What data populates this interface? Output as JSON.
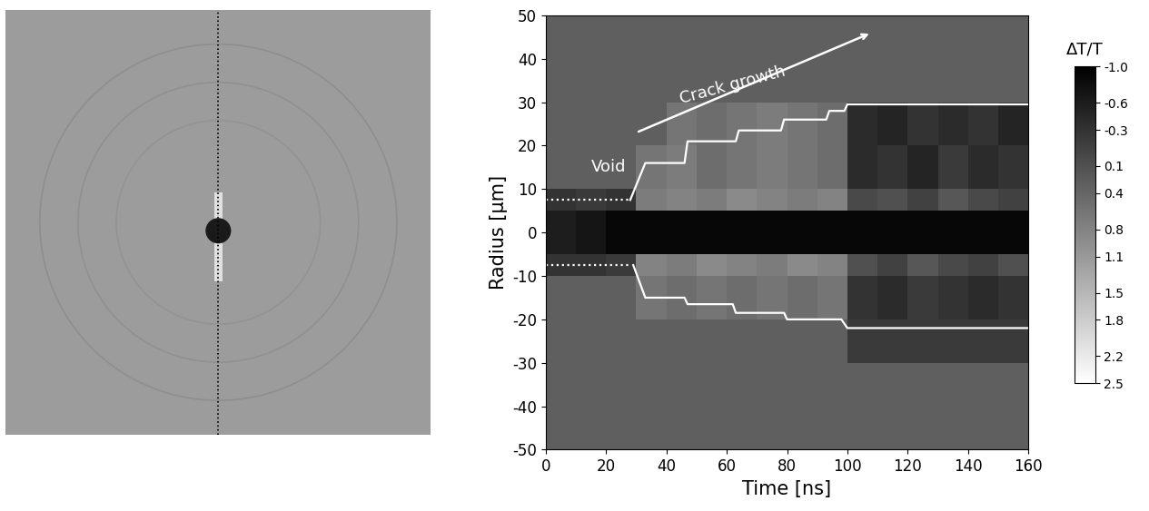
{
  "chart_data": {
    "type": "heatmap",
    "xlabel": "Time [ns]",
    "ylabel": "Radius [μm]",
    "xlim": [
      0,
      160
    ],
    "xticks": [
      0,
      20,
      40,
      60,
      80,
      100,
      120,
      140,
      160
    ],
    "ylim": [
      -50,
      50
    ],
    "yticks": [
      -50,
      -40,
      -30,
      -20,
      -10,
      0,
      10,
      20,
      30,
      40,
      50
    ],
    "color": "gray",
    "x_edges": [
      0,
      10,
      20,
      30,
      40,
      50,
      60,
      70,
      80,
      90,
      100,
      110,
      120,
      130,
      140,
      150,
      160
    ],
    "y_edges": [
      -50,
      -40,
      -30,
      -20,
      -10,
      -5,
      5,
      10,
      20,
      30,
      40,
      50
    ],
    "cells": [
      [
        0.3,
        0.3,
        0.3,
        0.3,
        0.3,
        0.3,
        0.3,
        0.3,
        0.3,
        0.3,
        0.3,
        0.3,
        0.3,
        0.3,
        0.3,
        0.3
      ],
      [
        0.3,
        0.3,
        0.3,
        0.3,
        0.3,
        0.3,
        0.3,
        0.3,
        0.3,
        0.3,
        0.3,
        0.3,
        0.3,
        0.3,
        0.3,
        0.3
      ],
      [
        0.3,
        0.3,
        0.3,
        0.3,
        0.3,
        0.3,
        0.3,
        0.3,
        0.3,
        0.3,
        -0.2,
        -0.2,
        -0.2,
        -0.2,
        -0.2,
        -0.2
      ],
      [
        0.3,
        0.3,
        0.3,
        0.6,
        0.5,
        0.6,
        0.5,
        0.6,
        0.5,
        0.6,
        -0.3,
        -0.4,
        -0.2,
        -0.3,
        -0.4,
        -0.3
      ],
      [
        -0.3,
        -0.3,
        -0.2,
        0.8,
        0.7,
        0.9,
        0.8,
        0.7,
        0.9,
        0.8,
        0.1,
        -0.1,
        0.2,
        0.0,
        -0.1,
        0.1
      ],
      [
        -0.6,
        -0.7,
        -0.9,
        -0.9,
        -0.9,
        -0.9,
        -0.9,
        -0.9,
        -0.9,
        -0.9,
        -0.9,
        -0.9,
        -0.9,
        -0.9,
        -0.9,
        -0.9
      ],
      [
        -0.3,
        -0.2,
        -0.3,
        0.7,
        0.8,
        0.7,
        0.9,
        0.8,
        0.7,
        0.8,
        0.0,
        0.1,
        -0.1,
        0.2,
        0.0,
        -0.1
      ],
      [
        0.3,
        0.3,
        0.3,
        0.6,
        0.7,
        0.5,
        0.6,
        0.7,
        0.6,
        0.5,
        -0.4,
        -0.3,
        -0.5,
        -0.2,
        -0.4,
        -0.3
      ],
      [
        0.3,
        0.3,
        0.3,
        0.3,
        0.6,
        0.5,
        0.6,
        0.7,
        0.6,
        0.5,
        -0.4,
        -0.5,
        -0.3,
        -0.4,
        -0.3,
        -0.5
      ],
      [
        0.3,
        0.3,
        0.3,
        0.3,
        0.3,
        0.3,
        0.3,
        0.3,
        0.3,
        0.3,
        0.3,
        0.3,
        0.3,
        0.3,
        0.3,
        0.3
      ],
      [
        0.3,
        0.3,
        0.3,
        0.3,
        0.3,
        0.3,
        0.3,
        0.3,
        0.3,
        0.3,
        0.3,
        0.3,
        0.3,
        0.3,
        0.3,
        0.3
      ]
    ],
    "colorbar": {
      "label": "ΔT/T",
      "range": [
        -1.0,
        2.5
      ],
      "ticks": [
        -1.0,
        -0.6,
        -0.3,
        0.1,
        0.4,
        0.8,
        1.1,
        1.5,
        1.8,
        2.2,
        2.5
      ]
    },
    "series": [
      {
        "x": [
          28,
          33,
          46,
          47,
          63,
          64,
          78,
          79,
          93,
          94,
          99,
          100,
          160
        ],
        "values": [
          7.5,
          16,
          16,
          21,
          21,
          23.5,
          23.5,
          26,
          26,
          28,
          28,
          29.5,
          29.5
        ],
        "color": "white",
        "line_style": "solid"
      },
      {
        "x": [
          29,
          33,
          46,
          47,
          62,
          63,
          79,
          80,
          98,
          100,
          160
        ],
        "values": [
          -7.5,
          -15,
          -15,
          -16.5,
          -16.5,
          -18.5,
          -18.5,
          -20,
          -20,
          -22,
          -22
        ],
        "color": "white",
        "line_style": "solid"
      },
      {
        "x": [
          0,
          28
        ],
        "values": [
          7.5,
          7.5
        ],
        "color": "white",
        "line_style": "dotted"
      },
      {
        "x": [
          0,
          28
        ],
        "values": [
          -7.5,
          -7.5
        ],
        "color": "white",
        "line_style": "dotted"
      }
    ],
    "annotations": [
      "Void",
      "Crack growth"
    ]
  }
}
